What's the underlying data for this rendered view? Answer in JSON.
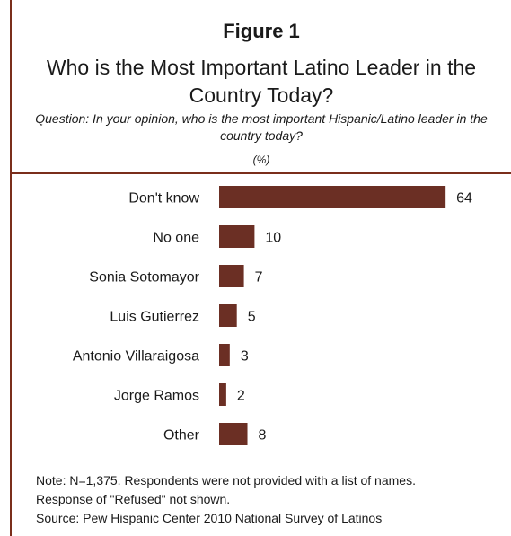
{
  "figure": {
    "label": "Figure 1",
    "title": "Who is the Most Important Latino Leader in the Country Today?",
    "question": "Question: In your opinion, who is the most important Hispanic/Latino leader in the country today?",
    "unit": "(%)"
  },
  "chart_data": {
    "type": "bar",
    "orientation": "horizontal",
    "categories": [
      "Don't know",
      "No one",
      "Sonia Sotomayor",
      "Luis Gutierrez",
      "Antonio Villaraigosa",
      "Jorge Ramos",
      "Other"
    ],
    "values": [
      64,
      10,
      7,
      5,
      3,
      2,
      8
    ],
    "bar_color": "#6b2f24",
    "title": "Who is the Most Important Latino Leader in the Country Today?",
    "xlabel": "",
    "ylabel": "",
    "grid": false,
    "legend": "none"
  },
  "notes": {
    "note_line1": "Note: N=1,375. Respondents were not provided with a list of names.",
    "note_line2": "Response of \"Refused\" not shown.",
    "source": "Source: Pew Hispanic Center 2010 National Survey of Latinos"
  },
  "colors": {
    "accent_rule": "#7a2e1b",
    "bar": "#6b2f24"
  }
}
